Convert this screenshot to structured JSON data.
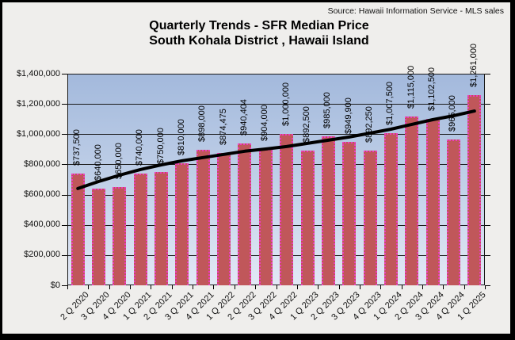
{
  "source_note": "Source:  Hawaii Information Service - MLS sales",
  "title": {
    "line1": "Quarterly Trends - SFR Median Price",
    "line2": "South Kohala District , Hawaii Island"
  },
  "chart_data": {
    "type": "bar",
    "title": "Quarterly Trends - SFR Median Price, South Kohala District, Hawaii Island",
    "categories": [
      "2 Q 2020",
      "3 Q 2020",
      "4 Q 2020",
      "1 Q 2021",
      "2 Q 2021",
      "3 Q 2021",
      "4 Q 2021",
      "1 Q 2022",
      "2 Q 2022",
      "3 Q 2022",
      "4 Q 2022",
      "1 Q 2023",
      "2 Q 2023",
      "3 Q 2023",
      "4 Q 2023",
      "1 Q 2024",
      "2 Q 2024",
      "3 Q 2024",
      "4 Q 2024",
      "1 Q 2025"
    ],
    "values": [
      737500,
      640000,
      650000,
      740000,
      750000,
      810000,
      898000,
      874475,
      940404,
      904000,
      1000000,
      892500,
      985000,
      949900,
      892250,
      1007500,
      1115000,
      1102500,
      965000,
      1261000
    ],
    "value_labels": [
      "$737,500",
      "$640,000",
      "$650,000",
      "$740,000",
      "$750,000",
      "$810,000",
      "$898,000",
      "$874,475",
      "$940,404",
      "$904,000",
      "$1,000,000",
      "$892,500",
      "$985,000",
      "$949,900",
      "$892,250",
      "$1,007,500",
      "$1,115,000",
      "$1,102,500",
      "$965,000",
      "$1,261,000"
    ],
    "trendline": {
      "type": "smooth-trend",
      "values": [
        640000,
        687000,
        729000,
        766000,
        797000,
        824000,
        845000,
        866000,
        887000,
        902000,
        918000,
        939000,
        960000,
        981000,
        1007000,
        1033000,
        1065000,
        1096000,
        1122000,
        1153000
      ]
    },
    "xlabel": "",
    "ylabel": "",
    "ylim": [
      0,
      1400000
    ],
    "y_ticks": [
      0,
      200000,
      400000,
      600000,
      800000,
      1000000,
      1200000,
      1400000
    ],
    "y_tick_labels": [
      "$0",
      "$200,000",
      "$400,000",
      "$600,000",
      "$800,000",
      "$1,000,000",
      "$1,200,000",
      "$1,400,000"
    ],
    "grid": "horizontal",
    "legend": "none",
    "colors": {
      "bar_fill": "#c0575a",
      "bar_border": "#ee3cbe",
      "trend_line": "#000000",
      "plot_gradient_top": "#a3b9dc",
      "plot_gradient_bottom": "#e2e8f5",
      "background": "#efeeec",
      "gridline": "#1a1a1a"
    }
  }
}
